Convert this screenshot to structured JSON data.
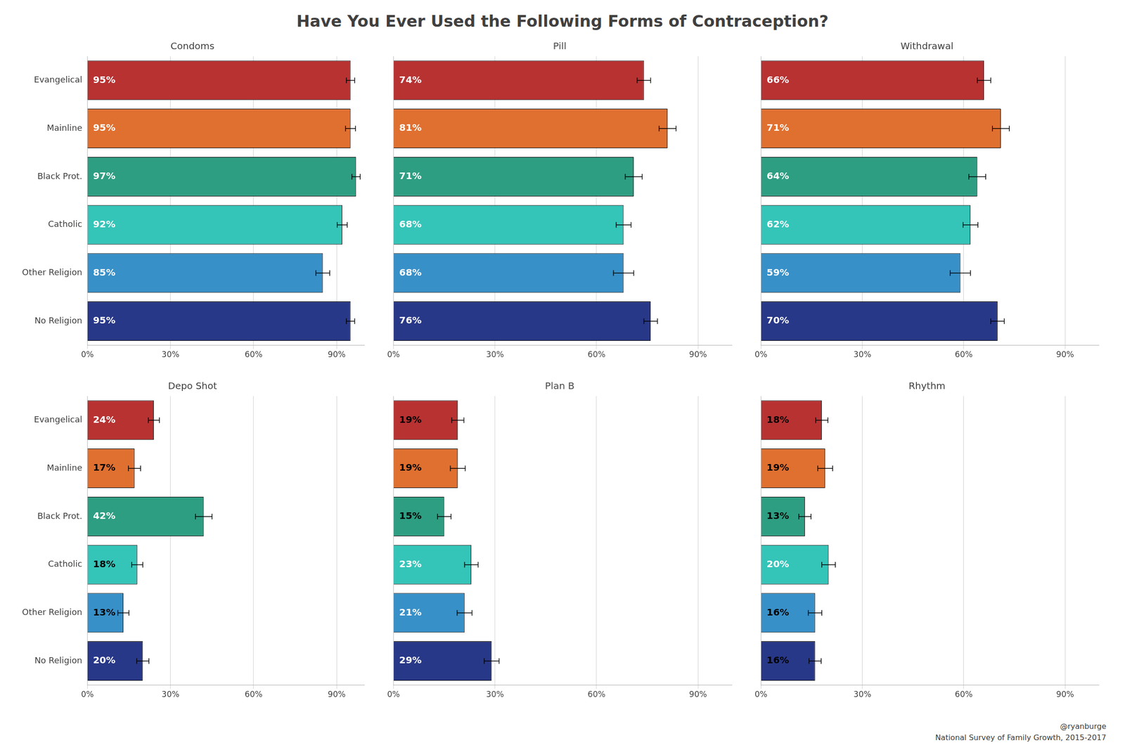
{
  "title": "Have You Ever Used the Following Forms of Contraception?",
  "annotations": [
    "@ryanburge",
    "National Survey of Family Growth, 2015-2017"
  ],
  "chart_data": [
    {
      "type": "bar",
      "orientation": "horizontal",
      "title": "Condoms",
      "categories": [
        "Evangelical",
        "Mainline",
        "Black Prot.",
        "Catholic",
        "Other Religion",
        "No Religion"
      ],
      "values": [
        95,
        95,
        97,
        92,
        85,
        95
      ],
      "value_labels": [
        "95%",
        "95%",
        "97%",
        "92%",
        "85%",
        "95%"
      ],
      "errors": [
        1.5,
        1.8,
        1.5,
        1.8,
        2.5,
        1.5
      ],
      "colors": [
        "#b83232",
        "#e07030",
        "#2e9e82",
        "#35c4b8",
        "#3890c8",
        "#283888"
      ],
      "xlim": [
        0,
        100
      ],
      "xticks": [
        {
          "value": 0,
          "label": "0%"
        },
        {
          "value": 30,
          "label": "30%"
        },
        {
          "value": 60,
          "label": "60%"
        },
        {
          "value": 90,
          "label": "90%"
        }
      ],
      "grid": true,
      "data_labels": true
    },
    {
      "type": "bar",
      "orientation": "horizontal",
      "title": "Pill",
      "categories": [
        "Evangelical",
        "Mainline",
        "Black Prot.",
        "Catholic",
        "Other Religion",
        "No Religion"
      ],
      "values": [
        74,
        81,
        71,
        68,
        68,
        76
      ],
      "value_labels": [
        "74%",
        "81%",
        "71%",
        "68%",
        "68%",
        "76%"
      ],
      "errors": [
        2.0,
        2.5,
        2.5,
        2.2,
        3.0,
        2.0
      ],
      "colors": [
        "#b83232",
        "#e07030",
        "#2e9e82",
        "#35c4b8",
        "#3890c8",
        "#283888"
      ],
      "xlim": [
        0,
        100
      ],
      "xticks": [
        {
          "value": 0,
          "label": "0%"
        },
        {
          "value": 30,
          "label": "30%"
        },
        {
          "value": 60,
          "label": "60%"
        },
        {
          "value": 90,
          "label": "90%"
        }
      ],
      "grid": true,
      "data_labels": true,
      "tick_labels": "x"
    },
    {
      "type": "bar",
      "orientation": "horizontal",
      "title": "Withdrawal",
      "categories": [
        "Evangelical",
        "Mainline",
        "Black Prot.",
        "Catholic",
        "Other Religion",
        "No Religion"
      ],
      "values": [
        66,
        71,
        64,
        62,
        59,
        70
      ],
      "value_labels": [
        "66%",
        "71%",
        "64%",
        "62%",
        "59%",
        "70%"
      ],
      "errors": [
        2.0,
        2.5,
        2.5,
        2.2,
        3.0,
        2.0
      ],
      "colors": [
        "#b83232",
        "#e07030",
        "#2e9e82",
        "#35c4b8",
        "#3890c8",
        "#283888"
      ],
      "xlim": [
        0,
        100
      ],
      "xticks": [
        {
          "value": 0,
          "label": "0%"
        },
        {
          "value": 30,
          "label": "30%"
        },
        {
          "value": 60,
          "label": "60%"
        },
        {
          "value": 90,
          "label": "90%"
        }
      ],
      "grid": true,
      "data_labels": true,
      "tick_labels": "x"
    },
    {
      "type": "bar",
      "orientation": "horizontal",
      "title": "Depo Shot",
      "categories": [
        "Evangelical",
        "Mainline",
        "Black Prot.",
        "Catholic",
        "Other Religion",
        "No Religion"
      ],
      "values": [
        24,
        17,
        42,
        18,
        13,
        20
      ],
      "value_labels": [
        "24%",
        "17%",
        "42%",
        "18%",
        "13%",
        "20%"
      ],
      "errors": [
        2.0,
        2.2,
        3.0,
        2.0,
        2.0,
        2.2
      ],
      "colors": [
        "#b83232",
        "#e07030",
        "#2e9e82",
        "#35c4b8",
        "#3890c8",
        "#283888"
      ],
      "xlim": [
        0,
        100
      ],
      "xticks": [
        {
          "value": 0,
          "label": "0%"
        },
        {
          "value": 30,
          "label": "30%"
        },
        {
          "value": 60,
          "label": "60%"
        },
        {
          "value": 90,
          "label": "90%"
        }
      ],
      "grid": true,
      "data_labels": true
    },
    {
      "type": "bar",
      "orientation": "horizontal",
      "title": "Plan B",
      "categories": [
        "Evangelical",
        "Mainline",
        "Black Prot.",
        "Catholic",
        "Other Religion",
        "No Religion"
      ],
      "values": [
        19,
        19,
        15,
        23,
        21,
        29
      ],
      "value_labels": [
        "19%",
        "19%",
        "15%",
        "23%",
        "21%",
        "29%"
      ],
      "errors": [
        1.8,
        2.2,
        2.0,
        2.0,
        2.2,
        2.2
      ],
      "colors": [
        "#b83232",
        "#e07030",
        "#2e9e82",
        "#35c4b8",
        "#3890c8",
        "#283888"
      ],
      "xlim": [
        0,
        100
      ],
      "xticks": [
        {
          "value": 0,
          "label": "0%"
        },
        {
          "value": 30,
          "label": "30%"
        },
        {
          "value": 60,
          "label": "60%"
        },
        {
          "value": 90,
          "label": "90%"
        }
      ],
      "grid": true,
      "data_labels": true,
      "tick_labels": "x"
    },
    {
      "type": "bar",
      "orientation": "horizontal",
      "title": "Rhythm",
      "categories": [
        "Evangelical",
        "Mainline",
        "Black Prot.",
        "Catholic",
        "Other Religion",
        "No Religion"
      ],
      "values": [
        18,
        19,
        13,
        20,
        16,
        16
      ],
      "value_labels": [
        "18%",
        "19%",
        "13%",
        "20%",
        "16%",
        "16%"
      ],
      "errors": [
        1.8,
        2.2,
        1.8,
        2.0,
        2.0,
        1.8
      ],
      "colors": [
        "#b83232",
        "#e07030",
        "#2e9e82",
        "#35c4b8",
        "#3890c8",
        "#283888"
      ],
      "xlim": [
        0,
        100
      ],
      "xticks": [
        {
          "value": 0,
          "label": "0%"
        },
        {
          "value": 30,
          "label": "30%"
        },
        {
          "value": 60,
          "label": "60%"
        },
        {
          "value": 90,
          "label": "90%"
        }
      ],
      "grid": true,
      "data_labels": true,
      "tick_labels": "x"
    }
  ]
}
